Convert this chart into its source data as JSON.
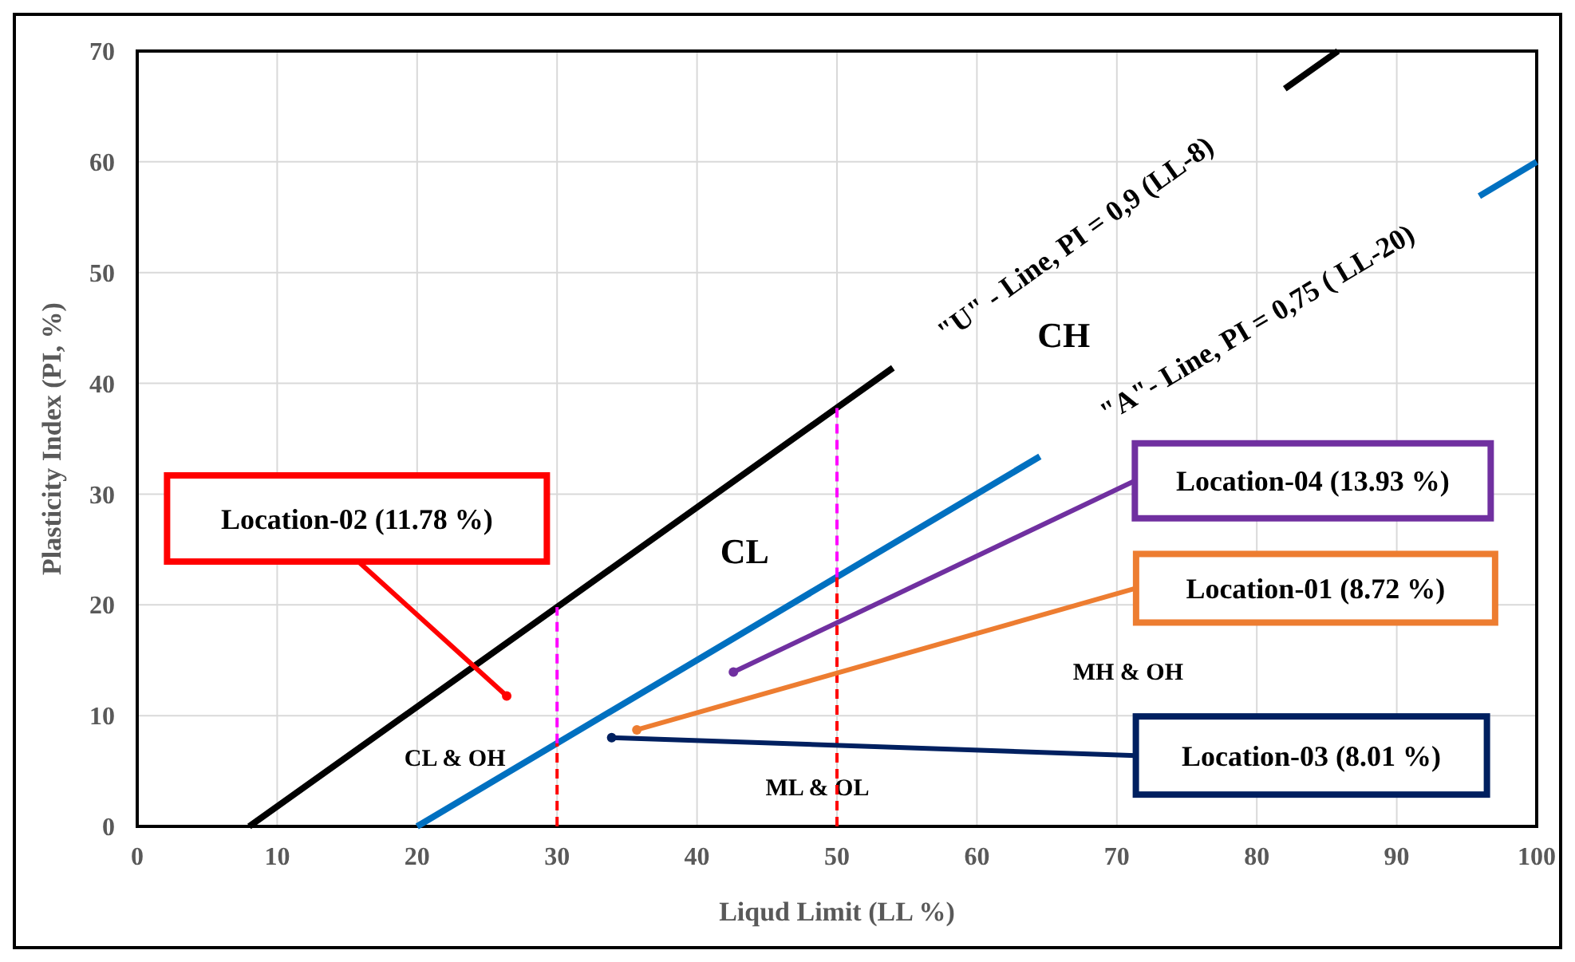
{
  "chart_data": {
    "type": "scatter",
    "xlabel": "Liqud Limit (LL %)",
    "ylabel": "Plasticity Index (PI, %)",
    "xlim": [
      0,
      100
    ],
    "ylim": [
      0,
      70
    ],
    "xticks": [
      0,
      10,
      20,
      30,
      40,
      50,
      60,
      70,
      80,
      90,
      100
    ],
    "yticks": [
      0,
      10,
      20,
      30,
      40,
      50,
      60,
      70
    ],
    "grid": true,
    "series": [
      {
        "type": "line",
        "color": "#000000",
        "x": [
          8,
          54,
          68,
          82,
          85.8
        ],
        "values": [
          0,
          41.4,
          null,
          66.6,
          70
        ]
      },
      {
        "type": "line",
        "color": "#0070c0",
        "x": [
          20,
          64.5,
          80,
          95.9,
          100
        ],
        "values": [
          0,
          33.4,
          null,
          56.9,
          60
        ]
      },
      {
        "type": "line",
        "color": "#ff0000",
        "line_style": "dashed",
        "x": [
          30,
          30
        ],
        "values": [
          0,
          7.5
        ]
      },
      {
        "type": "line",
        "color": "#ff00ff",
        "line_style": "dashed",
        "x": [
          30,
          30
        ],
        "values": [
          7.5,
          19.8
        ]
      },
      {
        "type": "line",
        "color": "#ff0000",
        "line_style": "dashed",
        "x": [
          50,
          50
        ],
        "values": [
          0,
          22.5
        ]
      },
      {
        "type": "line",
        "color": "#ff00ff",
        "line_style": "dashed",
        "x": [
          50,
          50
        ],
        "values": [
          22.5,
          37.8
        ]
      },
      {
        "marker": "circle",
        "name": "Location-02 (11.78 %)",
        "color": "#ff0000",
        "x": [
          26.4
        ],
        "values": [
          11.78
        ]
      },
      {
        "marker": "circle",
        "name": "Location-04 (13.93 %)",
        "color": "#7030a0",
        "x": [
          42.6
        ],
        "values": [
          13.93
        ]
      },
      {
        "marker": "circle",
        "name": "Location-01 (8.72 %)",
        "color": "#ed7d31",
        "x": [
          35.7
        ],
        "values": [
          8.72
        ]
      },
      {
        "marker": "circle",
        "name": "Location-03 (8.01 %)",
        "color": "#002060",
        "x": [
          33.9
        ],
        "values": [
          8.01
        ]
      }
    ],
    "annotations": [
      "\"U\" - Line,  PI = 0,9 (LL-8)",
      "\"A\"- Line,  PI = 0,75 ( LL-20)",
      "CH",
      "CL",
      "CL & OH",
      "ML & OL",
      "MH & OH"
    ]
  }
}
